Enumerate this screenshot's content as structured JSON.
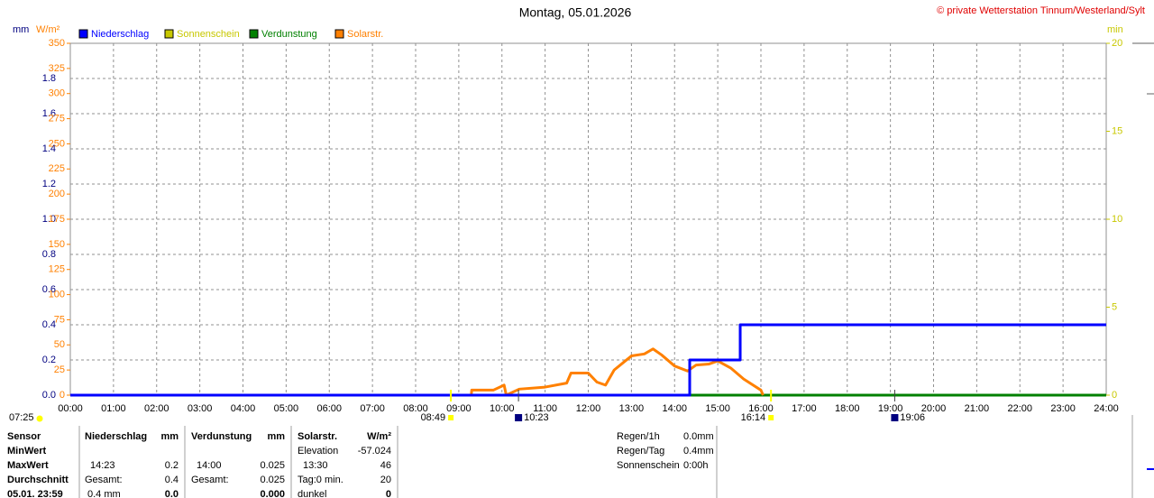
{
  "chart_data": {
    "type": "line",
    "title": "Montag, 05.01.2026",
    "copyright": "© private Wetterstation Tinnum/Westerland/Sylt",
    "ylabel": "mm",
    "y2label": "W/m²",
    "y3label": "min",
    "ylim": [
      0,
      2
    ],
    "y2lim": [
      0,
      350
    ],
    "y3lim": [
      0,
      20
    ],
    "yticks": [
      {
        "value": 0,
        "label": "0.0"
      },
      0.2,
      0.4,
      0.6,
      0.8,
      {
        "value": 1,
        "label": "1.0"
      },
      1.2,
      1.4,
      1.6,
      1.8
    ],
    "y2ticks": [
      0,
      25,
      50,
      75,
      100,
      125,
      150,
      175,
      200,
      225,
      250,
      275,
      300,
      325,
      350
    ],
    "y3ticks": [
      0,
      5,
      10,
      15,
      20
    ],
    "xlim": [
      0,
      24
    ],
    "xticks": [
      {
        "value": 0,
        "label": "00:00"
      },
      {
        "value": 1,
        "label": "01:00"
      },
      {
        "value": 2,
        "label": "02:00"
      },
      {
        "value": 3,
        "label": "03:00"
      },
      {
        "value": 4,
        "label": "04:00"
      },
      {
        "value": 5,
        "label": "05:00"
      },
      {
        "value": 6,
        "label": "06:00"
      },
      {
        "value": 7,
        "label": "07:00"
      },
      {
        "value": 8,
        "label": "08:00"
      },
      {
        "value": 9,
        "label": "09:00"
      },
      {
        "value": 10,
        "label": "10:00"
      },
      {
        "value": 11,
        "label": "11:00"
      },
      {
        "value": 12,
        "label": "12:00"
      },
      {
        "value": 13,
        "label": "13:00"
      },
      {
        "value": 14,
        "label": "14:00"
      },
      {
        "value": 15,
        "label": "15:00"
      },
      {
        "value": 16,
        "label": "16:00"
      },
      {
        "value": 17,
        "label": "17:00"
      },
      {
        "value": 18,
        "label": "18:00"
      },
      {
        "value": 19,
        "label": "19:00"
      },
      {
        "value": 20,
        "label": "20:00"
      },
      {
        "value": 21,
        "label": "21:00"
      },
      {
        "value": 22,
        "label": "22:00"
      },
      {
        "value": 23,
        "label": "23:00"
      },
      {
        "value": 24,
        "label": "24:00"
      }
    ],
    "grid": true,
    "series": [
      {
        "name": "Niederschlag",
        "color": "#0000ff",
        "axis": "y",
        "x": [
          0,
          14.35,
          14.35,
          15.52,
          15.52,
          24
        ],
        "values": [
          0,
          0,
          0.2,
          0.2,
          0.4,
          0.4
        ]
      },
      {
        "name": "Sonnenschein",
        "color": "#c8c800",
        "axis": "y3",
        "x": [
          0,
          24
        ],
        "values": [
          0,
          0
        ]
      },
      {
        "name": "Verdunstung",
        "color": "#008000",
        "axis": "y",
        "x": [
          0,
          24
        ],
        "values": [
          0,
          0
        ]
      },
      {
        "name": "Solarstr.",
        "color": "#ff8000",
        "axis": "y2",
        "x": [
          9.29,
          9.3,
          9.8,
          10.05,
          10.1,
          10.4,
          11,
          11.5,
          11.6,
          12,
          12.2,
          12.4,
          12.6,
          12.8,
          13,
          13.3,
          13.5,
          13.7,
          14,
          14.3,
          14.5,
          14.8,
          15,
          15.3,
          15.6,
          16,
          16.05
        ],
        "values": [
          0,
          5,
          5,
          10,
          0,
          6,
          8,
          12,
          22,
          22,
          13,
          10,
          25,
          32,
          39,
          41,
          46,
          40,
          29,
          24,
          30,
          31,
          34,
          27,
          16,
          5,
          0
        ]
      }
    ],
    "below_axis": {
      "left": "07:25",
      "sun": [
        "08:49",
        "16:14"
      ],
      "moon": [
        "10:23",
        "19:06"
      ]
    }
  },
  "table": {
    "rows": [
      [
        "Sensor",
        "Niederschlag",
        "mm",
        "Verdunstung",
        "mm",
        "Solarstr.",
        "W/m²"
      ],
      [
        "MinWert",
        null,
        null,
        null,
        null,
        "Elevation",
        "-57.024"
      ],
      [
        "MaxWert",
        "14:23",
        "0.2",
        "14:00",
        "0.025",
        "13:30",
        "46"
      ],
      [
        "Durchschnitt",
        "Gesamt:",
        "0.4",
        "Gesamt:",
        "0.025",
        "Tag:0 min.",
        "20"
      ],
      [
        "05.01. 23:59",
        "0.4 mm",
        "0.0",
        null,
        "0.000",
        "dunkel",
        "0"
      ]
    ]
  },
  "summary": [
    [
      "Regen/1h",
      "0.0mm"
    ],
    [
      "Regen/Tag",
      "0.4mm"
    ],
    [
      "Sonnenschein",
      "0:00h"
    ]
  ]
}
